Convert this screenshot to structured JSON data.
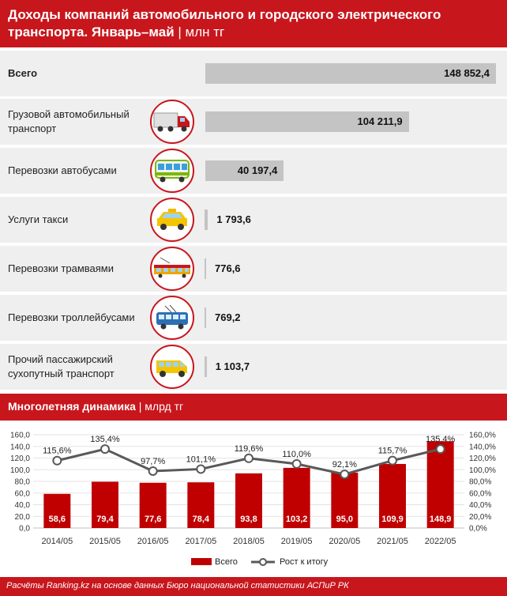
{
  "header": {
    "title": "Доходы компаний автомобильного и городского электрического транспорта. Январь–май",
    "sep": "|",
    "unit": "млн тг"
  },
  "breakdown": {
    "items": [
      {
        "label": "Всего",
        "value": 148852.4,
        "value_text": "148 852,4",
        "bold": true,
        "icon": "none"
      },
      {
        "label": "Грузовой автомобильный транспорт",
        "value": 104211.9,
        "value_text": "104 211,9",
        "icon": "truck-icon"
      },
      {
        "label": "Перевозки автобусами",
        "value": 40197.4,
        "value_text": "40 197,4",
        "icon": "bus-icon"
      },
      {
        "label": "Услуги такси",
        "value": 1793.6,
        "value_text": "1 793,6",
        "icon": "taxi-icon"
      },
      {
        "label": "Перевозки трамваями",
        "value": 776.6,
        "value_text": "776,6",
        "icon": "tram-icon"
      },
      {
        "label": "Перевозки троллейбусами",
        "value": 769.2,
        "value_text": "769,2",
        "icon": "trolleybus-icon"
      },
      {
        "label": "Прочий пассажирский сухопутный транспорт",
        "value": 1103.7,
        "value_text": "1 103,7",
        "icon": "minibus-icon"
      }
    ]
  },
  "dynamics": {
    "title": "Многолетняя динамика",
    "sep": "|",
    "unit": "млрд тг"
  },
  "chart_data": {
    "type": "bar",
    "categories": [
      "2014/05",
      "2015/05",
      "2016/05",
      "2017/05",
      "2018/05",
      "2019/05",
      "2020/05",
      "2021/05",
      "2022/05"
    ],
    "series": [
      {
        "name": "Всего",
        "type": "bar",
        "axis": "left",
        "values": [
          58.6,
          79.4,
          77.6,
          78.4,
          93.8,
          103.2,
          95.0,
          109.9,
          148.9
        ],
        "labels": [
          "58,6",
          "79,4",
          "77,6",
          "78,4",
          "93,8",
          "103,2",
          "95,0",
          "109,9",
          "148,9"
        ]
      },
      {
        "name": "Рост к итогу",
        "type": "line",
        "axis": "right",
        "values": [
          115.6,
          135.4,
          97.7,
          101.1,
          119.6,
          110.0,
          92.1,
          115.7,
          135.4
        ],
        "labels": [
          "115,6%",
          "135,4%",
          "97,7%",
          "101,1%",
          "119,6%",
          "110,0%",
          "92,1%",
          "115,7%",
          "135,4%"
        ]
      }
    ],
    "left_ticks": [
      "0,0",
      "20,0",
      "40,0",
      "60,0",
      "80,0",
      "100,0",
      "120,0",
      "140,0",
      "160,0"
    ],
    "right_ticks": [
      "0,0%",
      "20,0%",
      "40,0%",
      "60,0%",
      "80,0%",
      "100,0%",
      "120,0%",
      "140,0%",
      "160,0%"
    ],
    "ylim": [
      0,
      160
    ],
    "y2lim": [
      0,
      160
    ],
    "legend_position": "bottom",
    "colors": {
      "bar": "#c00000",
      "line": "#595959"
    }
  },
  "footer": {
    "source": "Расчёты Ranking.kz на основе данных Бюро национальной статистики АСПиР РК"
  }
}
